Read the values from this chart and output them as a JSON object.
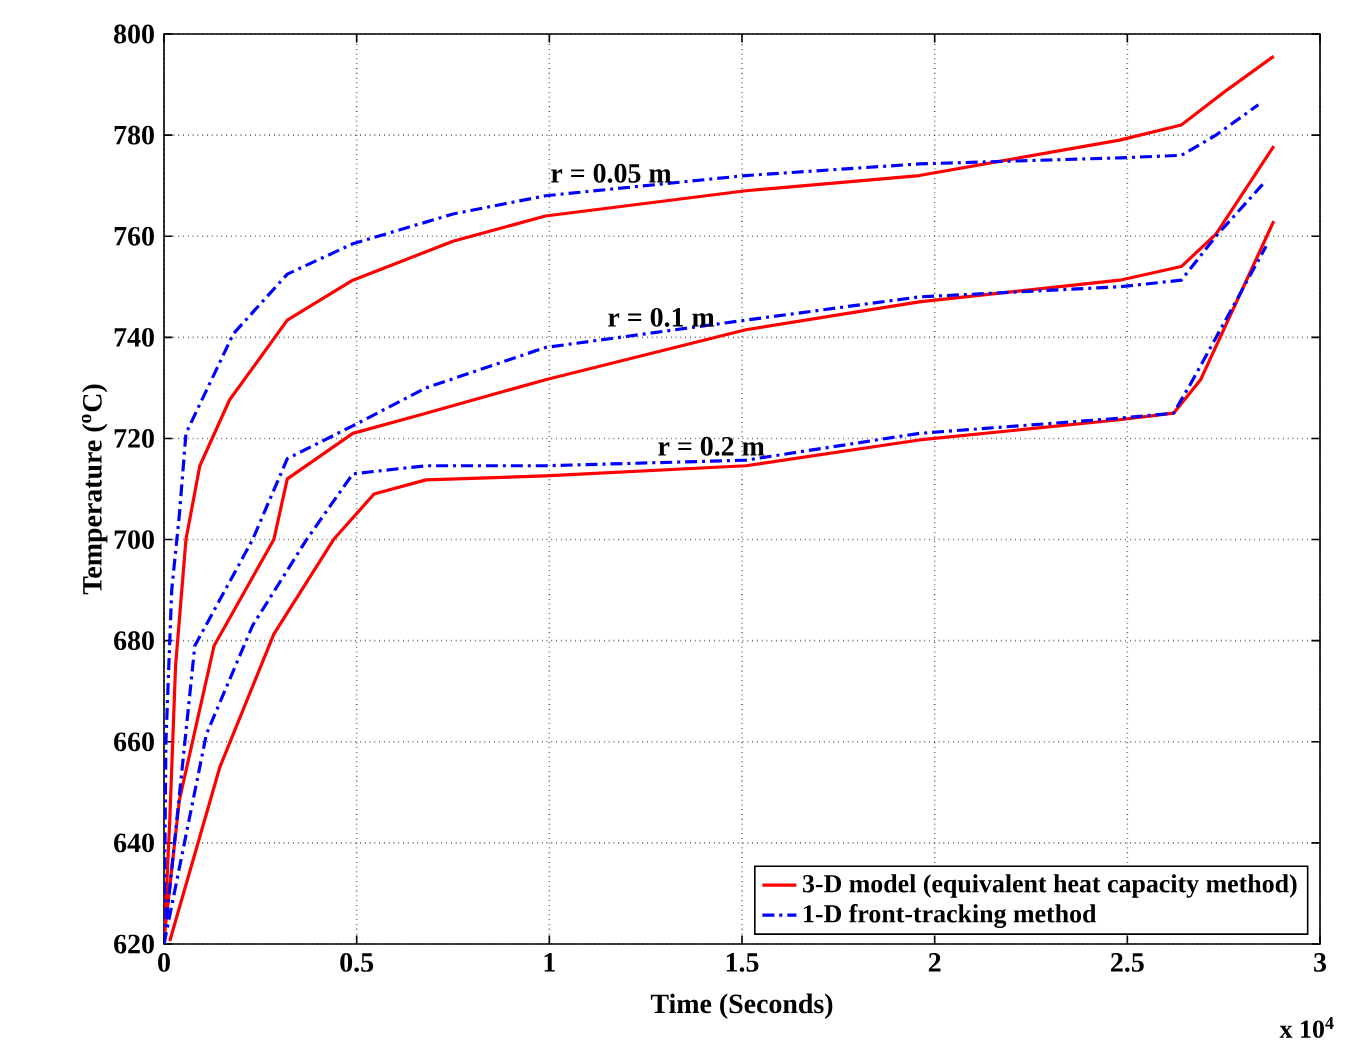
{
  "chart_data": {
    "type": "line",
    "xlabel": "Time (Seconds)",
    "ylabel": "Temperature ($^{o}$C)",
    "xlim": [
      0,
      3
    ],
    "ylim": [
      620,
      800
    ],
    "xticks": [
      0,
      0.5,
      1,
      1.5,
      2,
      2.5,
      3
    ],
    "yticks": [
      620,
      640,
      660,
      680,
      700,
      720,
      740,
      760,
      780,
      800
    ],
    "grid": true,
    "legend": "bottom right",
    "annotations": [
      {
        "text": "r = 0.05 m",
        "x": 1.16,
        "y": 769.5
      },
      {
        "text": "r = 0.1 m",
        "x": 1.29,
        "y": 741
      },
      {
        "text": "r = 0.2 m",
        "x": 1.42,
        "y": 715.5
      },
      "x 10$^{4}$"
    ],
    "series": [
      {
        "name": "3-D model (equivalent heat capacity method)",
        "color": "#ff0000",
        "line_style": "solid",
        "x": [
          0,
          0.015,
          0.03,
          0.057,
          0.093,
          0.17,
          0.32,
          0.49,
          0.75,
          0.99,
          1.51,
          1.96,
          2.48,
          2.64,
          2.76,
          2.88
        ],
        "values": [
          620,
          644.5,
          675,
          700,
          714.6,
          727.6,
          743.4,
          751.3,
          759,
          764,
          769,
          772,
          779,
          782,
          789,
          795.6
        ]
      },
      {
        "name": "1-D front-tracking method",
        "color": "#0000ff",
        "line_style": "dashdot",
        "x": [
          0,
          0.005,
          0.02,
          0.04,
          0.057,
          0.18,
          0.32,
          0.49,
          0.75,
          0.99,
          1.51,
          1.96,
          2.48,
          2.64,
          2.73,
          2.84
        ],
        "values": [
          620,
          660,
          690,
          705,
          721,
          740.7,
          752.5,
          758.5,
          764.4,
          768,
          772,
          774.3,
          775.5,
          776,
          780,
          786
        ]
      },
      {
        "color": "#ff0000",
        "line_style": "solid",
        "x": [
          0,
          0.04,
          0.13,
          0.285,
          0.32,
          0.49,
          0.68,
          0.99,
          1.51,
          1.96,
          2.48,
          2.64,
          2.73,
          2.88
        ],
        "values": [
          621,
          648.5,
          679,
          700,
          712,
          721,
          725,
          731.6,
          741.5,
          747,
          751.3,
          754,
          760.4,
          777.8
        ]
      },
      {
        "color": "#0000ff",
        "line_style": "dashdot",
        "x": [
          0,
          0.08,
          0.23,
          0.32,
          0.49,
          0.68,
          0.99,
          1.51,
          1.96,
          2.48,
          2.64,
          2.73,
          2.86
        ],
        "values": [
          620,
          679,
          700,
          716,
          722.5,
          730,
          738,
          743.4,
          748,
          750,
          751.3,
          760,
          771
        ]
      },
      {
        "color": "#ff0000",
        "line_style": "solid",
        "x": [
          0.015,
          0.145,
          0.285,
          0.44,
          0.545,
          0.68,
          0.99,
          1.51,
          1.96,
          2.48,
          2.62,
          2.69,
          2.88
        ],
        "values": [
          620.6,
          655,
          681.3,
          700,
          709,
          711.8,
          712.6,
          714.6,
          719.7,
          723.7,
          725,
          731.6,
          763
        ]
      },
      {
        "color": "#0000ff",
        "line_style": "dashdot",
        "x": [
          0,
          0.11,
          0.23,
          0.37,
          0.49,
          0.68,
          0.99,
          1.51,
          1.96,
          2.48,
          2.62,
          2.67,
          2.86
        ],
        "values": [
          620,
          661.5,
          683,
          700,
          713,
          714.6,
          714.6,
          715.7,
          721,
          724,
          725,
          731.6,
          758
        ]
      }
    ]
  }
}
